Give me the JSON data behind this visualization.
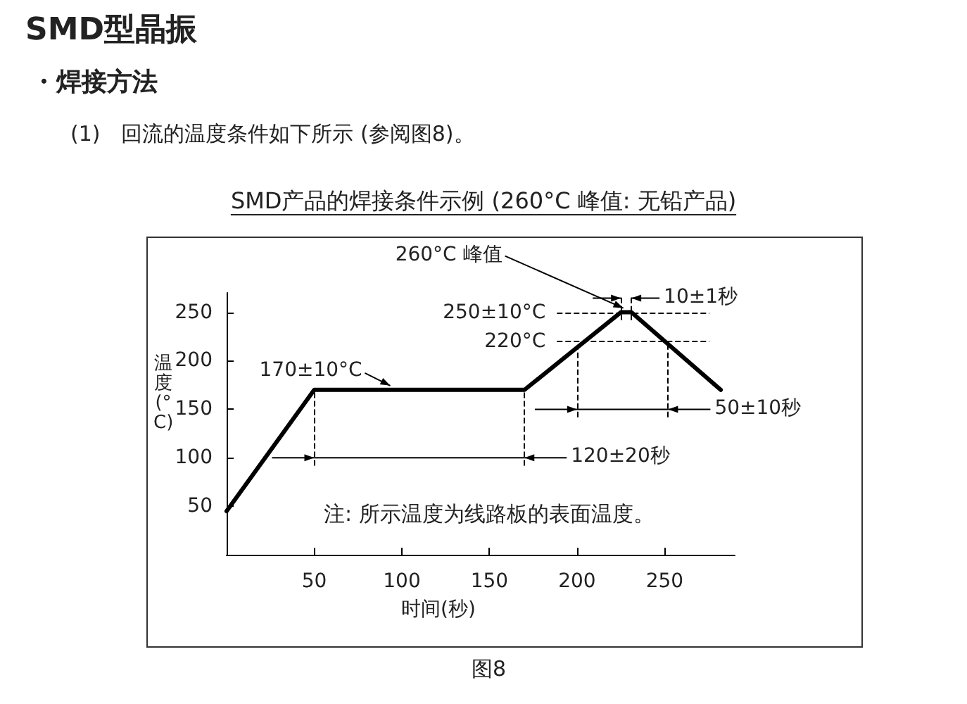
{
  "chart_data": {
    "type": "line",
    "title": "SMD产品的焊接条件示例 (260°C 峰值: 无铅产品)",
    "xlabel": "时间(秒)",
    "ylabel": "温度(°C)",
    "x": [
      0,
      50,
      170,
      225,
      231,
      282
    ],
    "values": [
      45,
      170,
      170,
      250,
      250,
      170
    ],
    "color": "#000000",
    "xlim": [
      0,
      290
    ],
    "ylim": [
      0,
      270
    ],
    "xticks": [
      50,
      100,
      150,
      200,
      250
    ],
    "yticks": [
      50,
      100,
      150,
      200,
      250
    ],
    "grid": false,
    "marker": "none",
    "line_style": "solid",
    "ref_lines": [
      {
        "axis": "y",
        "value": 250,
        "label": "250±10°C",
        "line_style": "dashed"
      },
      {
        "axis": "y",
        "value": 220,
        "label": "220°C",
        "line_style": "dashed"
      },
      {
        "axis": "x",
        "value": 50,
        "line_style": "dashed"
      },
      {
        "axis": "x",
        "value": 170,
        "label": "120±20秒",
        "line_style": "dashed"
      },
      {
        "axis": "x",
        "value": 200,
        "line_style": "dashed"
      },
      {
        "axis": "x",
        "value": 252,
        "label": "50±10秒",
        "line_style": "dashed"
      },
      {
        "axis": "x",
        "value": 225,
        "line_style": "dashed"
      },
      {
        "axis": "x",
        "value": 231,
        "label": "10±1秒",
        "line_style": "dashed"
      }
    ],
    "annotations": [
      "SMD型晶振",
      "・焊接方法",
      "(1)　回流的温度条件如下所示 (参阅图8)。",
      {
        "text": "170±10°C",
        "x": 95,
        "y": 170
      },
      {
        "text": "260°C 峰值",
        "x": 228,
        "y": 250
      },
      "注: 所示温度为线路板的表面温度。",
      "图8"
    ]
  }
}
